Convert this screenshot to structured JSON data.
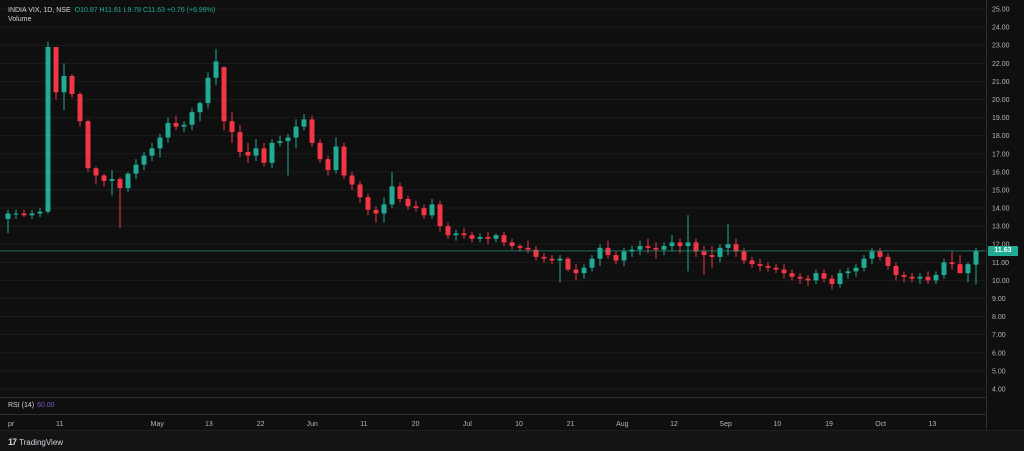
{
  "legend": {
    "symbol": "INDIA VIX, 1D, NSE",
    "ohlc": "O10.87 H11.81 L9.78 C11.63 +0.76 (+6.99%)",
    "volume_label": "Volume"
  },
  "rsi": {
    "label": "RSI (14)",
    "value": "60.00"
  },
  "brand": {
    "name": "TradingView",
    "logo": "17"
  },
  "last_price": "11.63",
  "colors": {
    "up": "#22ab94",
    "down": "#f23645",
    "background": "#0f0f0f",
    "last_price_line": "#22ab94"
  },
  "chart_data": {
    "type": "candlestick",
    "title": "INDIA VIX, 1D, NSE",
    "ylim": [
      3.5,
      25.5
    ],
    "y_ticks": [
      "25.00",
      "24.00",
      "23.00",
      "22.00",
      "21.00",
      "20.00",
      "19.00",
      "18.00",
      "17.00",
      "16.00",
      "15.00",
      "14.00",
      "13.00",
      "12.00",
      "11.00",
      "10.00",
      "9.00",
      "8.00",
      "7.00",
      "6.00",
      "5.00",
      "4.00"
    ],
    "x_ticks": [
      "pr",
      "11",
      "May",
      "13",
      "22",
      "Jun",
      "11",
      "20",
      "Jul",
      "10",
      "21",
      "Aug",
      "12",
      "Sep",
      "10",
      "19",
      "Oct",
      "13"
    ],
    "grid": true,
    "last_price": 11.63,
    "candles": [
      [
        13.4,
        13.9,
        12.6,
        13.7
      ],
      [
        13.7,
        13.9,
        13.4,
        13.7
      ],
      [
        13.7,
        13.9,
        13.5,
        13.6
      ],
      [
        13.6,
        13.9,
        13.4,
        13.7
      ],
      [
        13.7,
        14.0,
        13.5,
        13.8
      ],
      [
        13.8,
        23.2,
        13.7,
        22.9
      ],
      [
        22.9,
        22.9,
        20.0,
        20.4
      ],
      [
        20.4,
        22.0,
        19.4,
        21.3
      ],
      [
        21.3,
        21.4,
        20.1,
        20.3
      ],
      [
        20.3,
        20.4,
        18.5,
        18.8
      ],
      [
        18.8,
        18.9,
        16.0,
        16.2
      ],
      [
        16.2,
        16.3,
        15.3,
        15.8
      ],
      [
        15.8,
        15.9,
        15.2,
        15.5
      ],
      [
        15.5,
        16.1,
        14.7,
        15.6
      ],
      [
        15.6,
        15.7,
        12.9,
        15.1
      ],
      [
        15.1,
        16.0,
        14.9,
        15.9
      ],
      [
        15.9,
        16.7,
        15.6,
        16.4
      ],
      [
        16.4,
        17.1,
        16.1,
        16.9
      ],
      [
        16.9,
        17.6,
        16.6,
        17.3
      ],
      [
        17.3,
        18.1,
        16.8,
        17.9
      ],
      [
        17.9,
        19.0,
        17.6,
        18.7
      ],
      [
        18.7,
        19.1,
        18.3,
        18.5
      ],
      [
        18.5,
        18.8,
        18.2,
        18.6
      ],
      [
        18.6,
        19.5,
        18.3,
        19.3
      ],
      [
        19.3,
        19.9,
        18.8,
        19.8
      ],
      [
        19.8,
        21.5,
        19.5,
        21.2
      ],
      [
        21.2,
        22.8,
        20.8,
        22.1
      ],
      [
        21.8,
        21.8,
        18.3,
        18.8
      ],
      [
        18.8,
        19.3,
        17.6,
        18.2
      ],
      [
        18.2,
        18.6,
        16.8,
        17.1
      ],
      [
        17.1,
        17.6,
        16.5,
        16.9
      ],
      [
        16.9,
        17.8,
        16.6,
        17.3
      ],
      [
        17.3,
        17.6,
        16.3,
        16.5
      ],
      [
        16.5,
        17.8,
        16.2,
        17.6
      ],
      [
        17.6,
        18.0,
        17.4,
        17.7
      ],
      [
        17.7,
        18.1,
        15.8,
        17.9
      ],
      [
        17.9,
        18.9,
        17.3,
        18.5
      ],
      [
        18.5,
        19.2,
        18.3,
        18.9
      ],
      [
        18.9,
        19.1,
        17.4,
        17.6
      ],
      [
        17.6,
        17.8,
        16.5,
        16.7
      ],
      [
        16.7,
        16.9,
        15.8,
        16.1
      ],
      [
        16.1,
        17.9,
        15.9,
        17.4
      ],
      [
        17.4,
        17.6,
        15.6,
        15.8
      ],
      [
        15.8,
        16.0,
        15.0,
        15.3
      ],
      [
        15.3,
        15.5,
        14.3,
        14.6
      ],
      [
        14.6,
        14.8,
        13.6,
        13.9
      ],
      [
        13.9,
        14.1,
        13.2,
        13.7
      ],
      [
        13.7,
        14.6,
        13.2,
        14.2
      ],
      [
        14.2,
        16.0,
        14.0,
        15.2
      ],
      [
        15.2,
        15.4,
        14.3,
        14.5
      ],
      [
        14.5,
        14.7,
        13.9,
        14.1
      ],
      [
        14.1,
        14.4,
        13.8,
        14.0
      ],
      [
        14.0,
        14.2,
        13.4,
        13.6
      ],
      [
        13.6,
        14.5,
        13.4,
        14.2
      ],
      [
        14.2,
        14.4,
        12.7,
        13.0
      ],
      [
        13.0,
        13.2,
        12.3,
        12.5
      ],
      [
        12.5,
        12.8,
        12.2,
        12.6
      ],
      [
        12.6,
        12.9,
        12.3,
        12.5
      ],
      [
        12.5,
        12.7,
        12.1,
        12.3
      ],
      [
        12.3,
        12.6,
        12.1,
        12.4
      ],
      [
        12.4,
        12.7,
        12.0,
        12.3
      ],
      [
        12.3,
        12.6,
        12.1,
        12.5
      ],
      [
        12.5,
        12.7,
        11.9,
        12.1
      ],
      [
        12.1,
        12.3,
        11.7,
        11.9
      ],
      [
        11.9,
        12.0,
        11.6,
        11.8
      ],
      [
        11.8,
        12.2,
        11.5,
        11.7
      ],
      [
        11.7,
        11.9,
        11.1,
        11.3
      ],
      [
        11.3,
        11.5,
        11.0,
        11.2
      ],
      [
        11.2,
        11.4,
        10.9,
        11.1
      ],
      [
        11.1,
        11.4,
        9.9,
        11.2
      ],
      [
        11.2,
        11.3,
        10.5,
        10.6
      ],
      [
        10.6,
        10.9,
        10.0,
        10.4
      ],
      [
        10.4,
        10.9,
        10.1,
        10.7
      ],
      [
        10.7,
        11.4,
        10.5,
        11.2
      ],
      [
        11.2,
        12.0,
        10.8,
        11.8
      ],
      [
        11.8,
        12.2,
        11.2,
        11.4
      ],
      [
        11.4,
        11.6,
        10.9,
        11.1
      ],
      [
        11.1,
        11.8,
        10.8,
        11.6
      ],
      [
        11.6,
        11.9,
        11.3,
        11.7
      ],
      [
        11.7,
        12.2,
        11.4,
        11.9
      ],
      [
        11.9,
        12.3,
        11.5,
        11.8
      ],
      [
        11.8,
        12.1,
        11.2,
        11.7
      ],
      [
        11.7,
        12.1,
        11.4,
        11.9
      ],
      [
        11.9,
        12.5,
        11.6,
        12.1
      ],
      [
        12.1,
        12.3,
        11.5,
        11.9
      ],
      [
        11.9,
        13.6,
        10.5,
        12.1
      ],
      [
        12.1,
        12.3,
        11.3,
        11.6
      ],
      [
        11.6,
        11.9,
        10.3,
        11.4
      ],
      [
        11.4,
        11.9,
        10.7,
        11.3
      ],
      [
        11.3,
        12.0,
        11.0,
        11.8
      ],
      [
        11.8,
        13.1,
        11.4,
        12.0
      ],
      [
        12.0,
        12.3,
        11.3,
        11.6
      ],
      [
        11.6,
        11.8,
        10.9,
        11.1
      ],
      [
        11.1,
        11.3,
        10.7,
        10.9
      ],
      [
        10.9,
        11.2,
        10.5,
        10.8
      ],
      [
        10.8,
        11.0,
        10.5,
        10.7
      ],
      [
        10.7,
        10.9,
        10.4,
        10.6
      ],
      [
        10.6,
        10.9,
        10.1,
        10.4
      ],
      [
        10.4,
        10.6,
        10.0,
        10.2
      ],
      [
        10.2,
        10.4,
        9.8,
        10.1
      ],
      [
        10.1,
        10.3,
        9.7,
        10.0
      ],
      [
        10.0,
        10.6,
        9.8,
        10.4
      ],
      [
        10.4,
        10.6,
        9.9,
        10.1
      ],
      [
        10.1,
        10.3,
        9.5,
        9.8
      ],
      [
        9.8,
        10.6,
        9.6,
        10.4
      ],
      [
        10.4,
        10.7,
        10.1,
        10.5
      ],
      [
        10.5,
        10.9,
        10.2,
        10.7
      ],
      [
        10.7,
        11.4,
        10.5,
        11.2
      ],
      [
        11.2,
        11.8,
        10.9,
        11.6
      ],
      [
        11.6,
        11.8,
        11.1,
        11.3
      ],
      [
        11.3,
        11.5,
        10.6,
        10.8
      ],
      [
        10.8,
        11.0,
        10.0,
        10.3
      ],
      [
        10.3,
        10.5,
        9.9,
        10.2
      ],
      [
        10.2,
        10.4,
        9.9,
        10.1
      ],
      [
        10.1,
        10.4,
        9.8,
        10.2
      ],
      [
        10.2,
        10.5,
        9.8,
        10.0
      ],
      [
        10.0,
        10.5,
        9.8,
        10.3
      ],
      [
        10.3,
        11.2,
        10.1,
        11.0
      ],
      [
        11.0,
        11.6,
        10.6,
        10.9
      ],
      [
        10.9,
        11.4,
        10.4,
        10.4
      ],
      [
        10.4,
        11.0,
        9.9,
        10.9
      ],
      [
        10.87,
        11.81,
        9.78,
        11.63
      ]
    ]
  }
}
